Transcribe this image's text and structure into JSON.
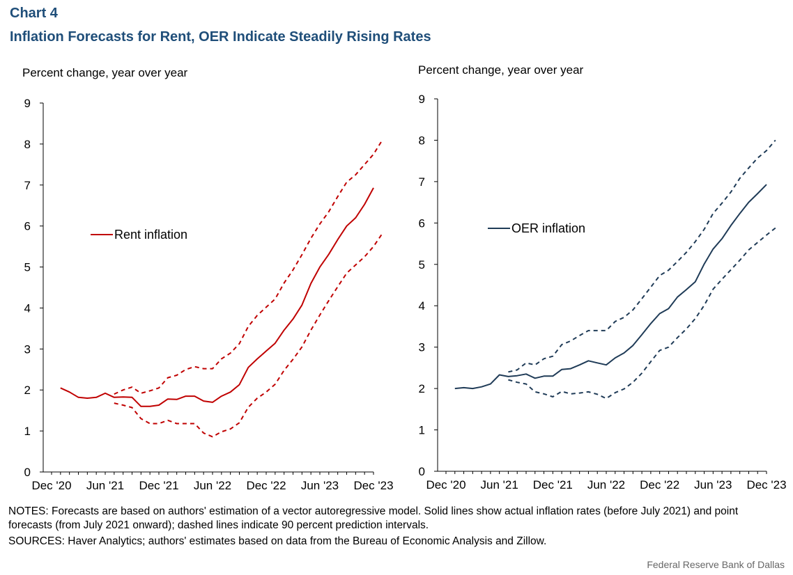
{
  "header": {
    "chart_number": "Chart 4",
    "title": "Inflation Forecasts for Rent, OER Indicate Steadily Rising Rates"
  },
  "footer": {
    "notes": "NOTES: Forecasts are based on authors' estimation of a vector autoregressive model. Solid lines show actual inflation rates (before July 2021) and point forecasts (from July 2021 onward); dashed lines indicate 90 percent prediction intervals.",
    "sources": "SOURCES: Haver Analytics; authors' estimates based on data from the Bureau of Economic Analysis and Zillow.",
    "credit": "Federal Reserve  Bank of Dallas"
  },
  "colors": {
    "rent": "#c00000",
    "oer": "#1f3b57",
    "title": "#1f4e79"
  },
  "chart_data": [
    {
      "type": "line",
      "title": "",
      "ylabel": "Percent change,  year over year",
      "ylim": [
        0,
        9
      ],
      "yticks": [
        0,
        1,
        2,
        3,
        4,
        5,
        6,
        7,
        8,
        9
      ],
      "xlim": [
        0,
        36
      ],
      "xticks": [
        {
          "pos": 0,
          "label": "Dec '20"
        },
        {
          "pos": 6,
          "label": "Jun '21"
        },
        {
          "pos": 12,
          "label": "Dec '21"
        },
        {
          "pos": 18,
          "label": "Jun '22"
        },
        {
          "pos": 24,
          "label": "Dec '22"
        },
        {
          "pos": 30,
          "label": "Jun '23"
        },
        {
          "pos": 36,
          "label": "Dec '23"
        }
      ],
      "legend": "Rent inflation",
      "series": [
        {
          "name": "Rent inflation",
          "style": "solid",
          "x0": 1,
          "values": [
            2.05,
            1.95,
            1.82,
            1.8,
            1.82,
            1.92,
            1.82,
            1.83,
            1.82,
            1.6,
            1.6,
            1.63,
            1.78,
            1.77,
            1.85,
            1.85,
            1.73,
            1.7,
            1.85,
            1.95,
            2.13,
            2.55,
            2.76,
            2.95,
            3.14,
            3.46,
            3.73,
            4.07,
            4.6,
            5.0,
            5.31,
            5.67,
            6.0,
            6.2,
            6.53,
            6.93
          ]
        },
        {
          "name": "Upper 90% bound",
          "style": "dashed",
          "x0": 7,
          "values": [
            1.9,
            2.0,
            2.07,
            1.92,
            1.98,
            2.05,
            2.3,
            2.36,
            2.5,
            2.57,
            2.52,
            2.52,
            2.76,
            2.9,
            3.13,
            3.55,
            3.82,
            4.02,
            4.22,
            4.61,
            4.93,
            5.3,
            5.7,
            6.05,
            6.35,
            6.72,
            7.07,
            7.25,
            7.5,
            7.75,
            8.1
          ]
        },
        {
          "name": "Lower 90% bound",
          "style": "dashed",
          "x0": 7,
          "values": [
            1.68,
            1.63,
            1.57,
            1.3,
            1.18,
            1.18,
            1.26,
            1.18,
            1.18,
            1.18,
            0.95,
            0.86,
            0.98,
            1.05,
            1.2,
            1.58,
            1.8,
            1.95,
            2.14,
            2.48,
            2.75,
            3.05,
            3.46,
            3.83,
            4.18,
            4.52,
            4.85,
            5.05,
            5.25,
            5.5,
            5.82
          ]
        }
      ]
    },
    {
      "type": "line",
      "title": "",
      "ylabel": "Percent change,  year over year",
      "ylim": [
        0,
        9
      ],
      "yticks": [
        0,
        1,
        2,
        3,
        4,
        5,
        6,
        7,
        8,
        9
      ],
      "xlim": [
        0,
        36
      ],
      "xticks": [
        {
          "pos": 0,
          "label": "Dec '20"
        },
        {
          "pos": 6,
          "label": "Jun '21"
        },
        {
          "pos": 12,
          "label": "Dec '21"
        },
        {
          "pos": 18,
          "label": "Jun '22"
        },
        {
          "pos": 24,
          "label": "Dec '22"
        },
        {
          "pos": 30,
          "label": "Jun '23"
        },
        {
          "pos": 36,
          "label": "Dec '23"
        }
      ],
      "legend": "OER inflation",
      "series": [
        {
          "name": "OER inflation",
          "style": "solid",
          "x0": 1,
          "values": [
            2.0,
            2.02,
            2.0,
            2.04,
            2.11,
            2.33,
            2.29,
            2.31,
            2.35,
            2.25,
            2.3,
            2.3,
            2.46,
            2.48,
            2.57,
            2.67,
            2.62,
            2.57,
            2.74,
            2.86,
            3.04,
            3.3,
            3.57,
            3.81,
            3.93,
            4.21,
            4.39,
            4.58,
            5.01,
            5.37,
            5.62,
            5.94,
            6.23,
            6.5,
            6.71,
            6.93
          ]
        },
        {
          "name": "Upper 90% bound",
          "style": "dashed",
          "x0": 7,
          "values": [
            2.4,
            2.45,
            2.62,
            2.57,
            2.72,
            2.78,
            3.06,
            3.15,
            3.28,
            3.4,
            3.4,
            3.4,
            3.62,
            3.72,
            3.9,
            4.17,
            4.45,
            4.73,
            4.86,
            5.07,
            5.29,
            5.55,
            5.85,
            6.23,
            6.48,
            6.75,
            7.08,
            7.33,
            7.57,
            7.75,
            8.0
          ]
        },
        {
          "name": "Lower 90% bound",
          "style": "dashed",
          "x0": 7,
          "values": [
            2.21,
            2.15,
            2.11,
            1.92,
            1.87,
            1.8,
            1.93,
            1.87,
            1.89,
            1.92,
            1.86,
            1.76,
            1.9,
            1.99,
            2.15,
            2.37,
            2.65,
            2.92,
            3.0,
            3.23,
            3.44,
            3.69,
            4.01,
            4.4,
            4.64,
            4.87,
            5.1,
            5.35,
            5.53,
            5.71,
            5.88
          ]
        }
      ]
    }
  ]
}
